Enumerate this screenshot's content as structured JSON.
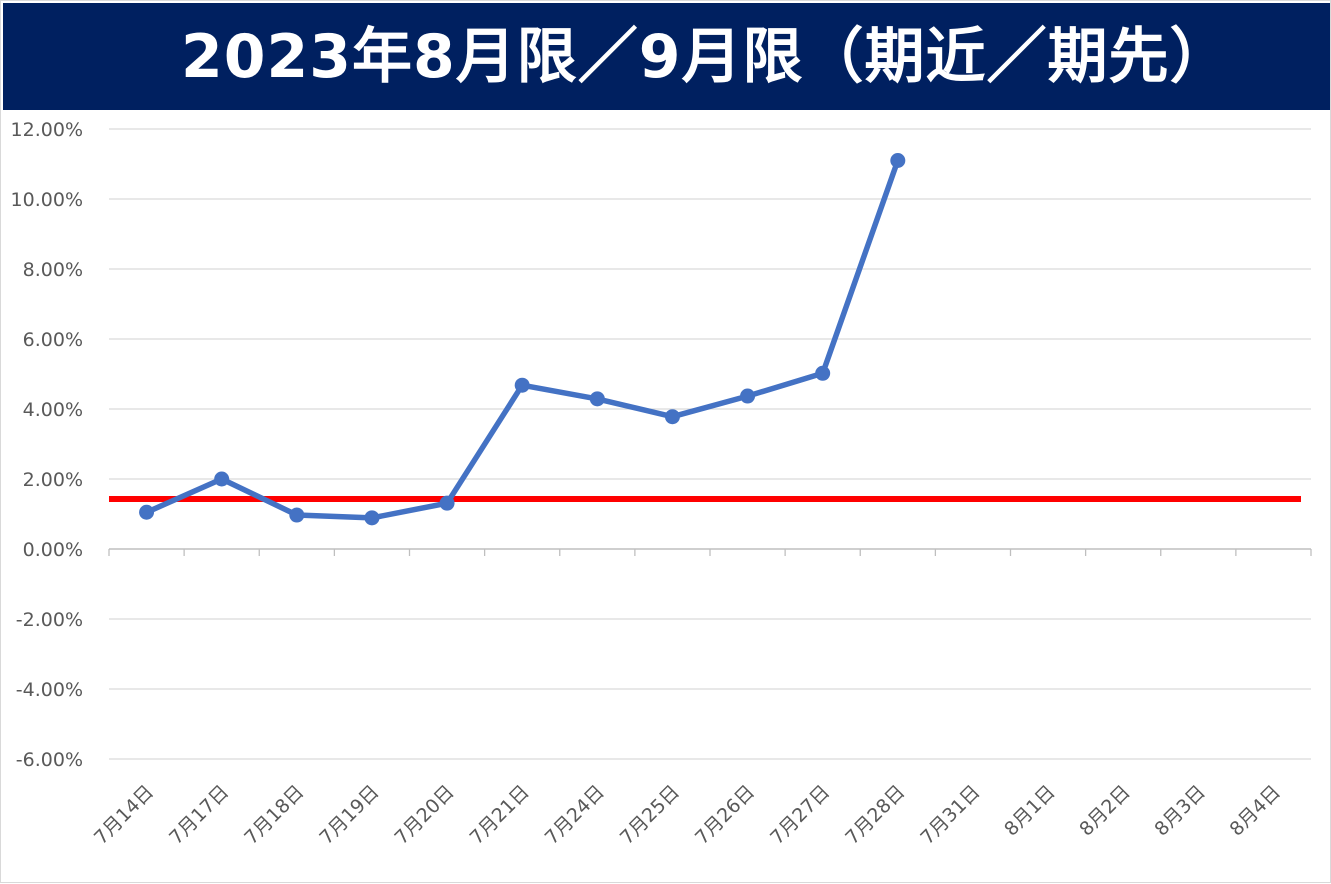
{
  "title": "2023年8月限／9月限（期近／期先）",
  "colors": {
    "banner": "#002060",
    "title_text": "#ffffff",
    "series_line": "#4472C4",
    "reference_line": "#FF0000",
    "grid": "#d9d9d9",
    "tick_text": "#595959"
  },
  "chart_data": {
    "type": "line",
    "title": "2023年8月限／9月限（期近／期先）",
    "xlabel": "",
    "ylabel": "",
    "categories": [
      "7月14日",
      "7月17日",
      "7月18日",
      "7月19日",
      "7月20日",
      "7月21日",
      "7月24日",
      "7月25日",
      "7月26日",
      "7月27日",
      "7月28日",
      "7月31日",
      "8月1日",
      "8月2日",
      "8月3日",
      "8月4日"
    ],
    "series": [
      {
        "values": [
          0.0105,
          0.02,
          0.0097,
          0.0089,
          0.0131,
          0.0468,
          0.0429,
          0.0378,
          0.0437,
          0.0502,
          0.111,
          null,
          null,
          null,
          null,
          null
        ]
      }
    ],
    "reference_line": {
      "value": 0.0143
    },
    "ylim": [
      -0.06,
      0.12
    ],
    "y_ticks": [
      0.12,
      0.1,
      0.08,
      0.06,
      0.04,
      0.02,
      0.0,
      -0.02,
      -0.04,
      -0.06
    ],
    "y_tick_labels": [
      "12.00%",
      "10.00%",
      "8.00%",
      "6.00%",
      "4.00%",
      "2.00%",
      "0.00%",
      "-2.00%",
      "-4.00%",
      "-6.00%"
    ],
    "grid": true,
    "legend": "none",
    "x_label_rotation": "-45deg"
  }
}
